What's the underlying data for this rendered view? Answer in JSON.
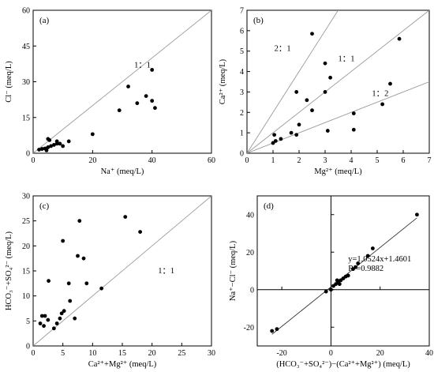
{
  "chart_data": [
    {
      "panel": "(a)",
      "type": "scatter",
      "xlabel": "Na⁺ (meq/L)",
      "ylabel": "Cl⁻ (meq/L)",
      "xlim": [
        0,
        60
      ],
      "ylim": [
        0,
        60
      ],
      "xticks": [
        0,
        20,
        40,
        60
      ],
      "yticks": [
        0,
        15,
        30,
        45,
        60
      ],
      "points": [
        [
          2,
          1.5
        ],
        [
          3,
          1.8
        ],
        [
          4,
          2
        ],
        [
          4.5,
          1.2
        ],
        [
          5,
          6
        ],
        [
          5.5,
          5.5
        ],
        [
          5,
          2.5
        ],
        [
          6,
          3
        ],
        [
          7,
          3.5
        ],
        [
          8,
          4
        ],
        [
          8,
          5
        ],
        [
          9,
          4
        ],
        [
          10,
          3
        ],
        [
          12,
          5
        ],
        [
          20,
          8
        ],
        [
          29,
          18
        ],
        [
          32,
          28
        ],
        [
          35,
          21
        ],
        [
          38,
          24
        ],
        [
          40,
          35
        ],
        [
          40,
          22
        ],
        [
          41,
          19
        ]
      ],
      "ref_lines": [
        {
          "slope": 1,
          "label": "1：1"
        }
      ]
    },
    {
      "panel": "(b)",
      "type": "scatter",
      "xlabel": "Mg²⁺ (meq/L)",
      "ylabel": "Ca²⁺ (meq/L)",
      "xlim": [
        0,
        7
      ],
      "ylim": [
        0,
        7
      ],
      "xticks": [
        0,
        1,
        2,
        3,
        4,
        5,
        6,
        7
      ],
      "yticks": [
        0,
        1,
        2,
        3,
        4,
        5,
        6,
        7
      ],
      "points": [
        [
          1,
          0.5
        ],
        [
          1.05,
          0.9
        ],
        [
          1.1,
          0.6
        ],
        [
          1.3,
          0.7
        ],
        [
          1.7,
          1.0
        ],
        [
          1.9,
          0.9
        ],
        [
          1.9,
          3.0
        ],
        [
          2.0,
          1.4
        ],
        [
          2.3,
          2.6
        ],
        [
          2.5,
          2.1
        ],
        [
          2.5,
          5.85
        ],
        [
          3.0,
          4.4
        ],
        [
          3.0,
          3.0
        ],
        [
          3.1,
          1.1
        ],
        [
          3.2,
          3.7
        ],
        [
          4.1,
          1.95
        ],
        [
          4.1,
          1.15
        ],
        [
          5.2,
          2.4
        ],
        [
          5.5,
          3.4
        ],
        [
          5.85,
          5.6
        ]
      ],
      "ref_lines": [
        {
          "slope": 2,
          "label": "2：1"
        },
        {
          "slope": 1,
          "label": "1：1"
        },
        {
          "slope": 0.5,
          "label": "1：2"
        }
      ]
    },
    {
      "panel": "(c)",
      "type": "scatter",
      "xlabel": "Ca²⁺+Mg²⁺ (meq/L)",
      "ylabel": "HCO₃⁻+SO₄²⁻ (meq/L)",
      "xlim": [
        0,
        30
      ],
      "ylim": [
        0,
        30
      ],
      "xticks": [
        0,
        5,
        10,
        15,
        20,
        25,
        30
      ],
      "yticks": [
        0,
        5,
        10,
        15,
        20,
        25,
        30
      ],
      "points": [
        [
          1.2,
          4.5
        ],
        [
          1.5,
          6
        ],
        [
          1.8,
          4
        ],
        [
          2,
          6
        ],
        [
          2.5,
          5.2
        ],
        [
          2.6,
          13
        ],
        [
          3.5,
          3.5
        ],
        [
          4,
          4.5
        ],
        [
          4.5,
          5.5
        ],
        [
          4.8,
          6.5
        ],
        [
          5,
          21
        ],
        [
          5.2,
          7
        ],
        [
          6,
          12.5
        ],
        [
          6.2,
          9
        ],
        [
          7,
          5.5
        ],
        [
          7.5,
          18
        ],
        [
          7.8,
          25
        ],
        [
          8.5,
          17.5
        ],
        [
          9,
          12.5
        ],
        [
          11.5,
          11.5
        ],
        [
          15.5,
          25.8
        ],
        [
          18,
          22.8
        ]
      ],
      "ref_lines": [
        {
          "slope": 1,
          "label": "1：1"
        }
      ]
    },
    {
      "panel": "(d)",
      "type": "scatter",
      "xlabel": "(HCO₃⁻+SO₄²⁻)−(Ca²⁺+Mg²⁺) (meq/L)",
      "ylabel": "Na⁺−Cl⁻ (meq/L)",
      "xlim": [
        -30,
        40
      ],
      "ylim": [
        -30,
        50
      ],
      "xticks": [
        -20,
        0,
        20,
        40
      ],
      "yticks": [
        -20,
        0,
        20,
        40
      ],
      "points": [
        [
          -24,
          -22
        ],
        [
          -22,
          -21
        ],
        [
          -2,
          -1
        ],
        [
          0,
          0
        ],
        [
          1,
          2
        ],
        [
          2,
          3
        ],
        [
          2.5,
          5
        ],
        [
          3,
          4
        ],
        [
          3.5,
          3
        ],
        [
          4,
          5
        ],
        [
          5,
          6
        ],
        [
          6,
          7
        ],
        [
          7,
          7.5
        ],
        [
          9,
          11
        ],
        [
          10,
          12
        ],
        [
          11,
          14
        ],
        [
          15,
          18
        ],
        [
          17,
          22
        ],
        [
          35,
          40
        ]
      ],
      "fit": {
        "slope": 1.0524,
        "intercept": 1.4601,
        "equation": "y=1.0524x+1.4601",
        "r2": "R²=0.9882"
      }
    }
  ]
}
